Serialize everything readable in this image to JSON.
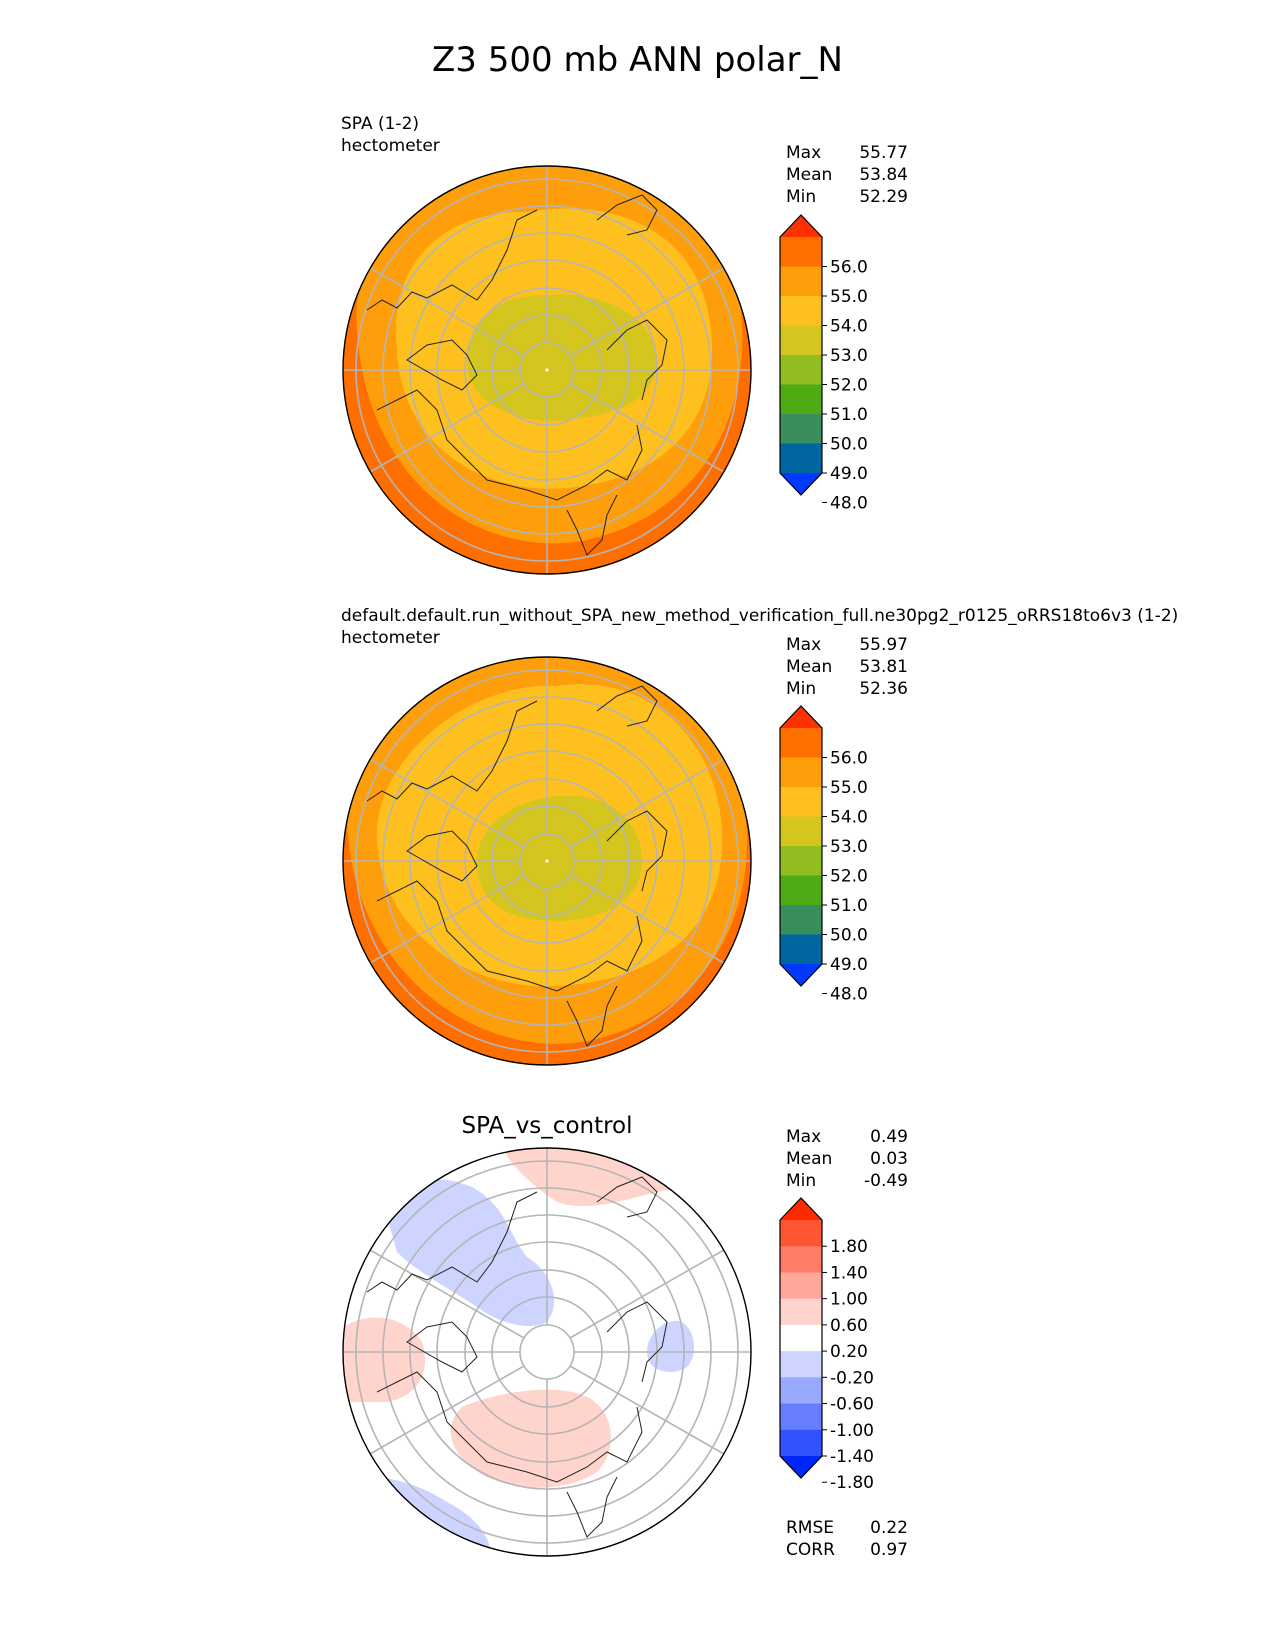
{
  "figure": {
    "title": "Z3 500 mb ANN polar_N"
  },
  "panels": [
    {
      "title_line1": "SPA (1-2)",
      "title_line2": "hectometer",
      "stats": [
        {
          "label": "Max",
          "value": "55.77"
        },
        {
          "label": "Mean",
          "value": "53.84"
        },
        {
          "label": "Min",
          "value": "52.29"
        }
      ],
      "colorbar": {
        "ticks": [
          "56.0",
          "55.0",
          "54.0",
          "53.0",
          "52.0",
          "51.0",
          "50.0",
          "49.0",
          "48.0"
        ],
        "colors": [
          "#fe3100",
          "#ff6f00",
          "#ff9e0b",
          "#fec01f",
          "#d5c61f",
          "#92bd20",
          "#4fab14",
          "#3a8e5e",
          "#0066a0",
          "#0039ff"
        ]
      }
    },
    {
      "title_line1": "default.default.run_without_SPA_new_method_verification_full.ne30pg2_r0125_oRRS18to6v3 (1-2)",
      "title_line2": "hectometer",
      "stats": [
        {
          "label": "Max",
          "value": "55.97"
        },
        {
          "label": "Mean",
          "value": "53.81"
        },
        {
          "label": "Min",
          "value": "52.36"
        }
      ],
      "colorbar": {
        "ticks": [
          "56.0",
          "55.0",
          "54.0",
          "53.0",
          "52.0",
          "51.0",
          "50.0",
          "49.0",
          "48.0"
        ],
        "colors": [
          "#fe3100",
          "#ff6f00",
          "#ff9e0b",
          "#fec01f",
          "#d5c61f",
          "#92bd20",
          "#4fab14",
          "#3a8e5e",
          "#0066a0",
          "#0039ff"
        ]
      }
    },
    {
      "title_center": "SPA_vs_control",
      "stats": [
        {
          "label": "Max",
          "value": "0.49"
        },
        {
          "label": "Mean",
          "value": "0.03"
        },
        {
          "label": "Min",
          "value": "-0.49"
        }
      ],
      "colorbar": {
        "ticks": [
          "1.80",
          "1.40",
          "1.00",
          "0.60",
          "0.20",
          "-0.20",
          "-0.60",
          "-1.00",
          "-1.40",
          "-1.80"
        ],
        "colors": [
          "#ff2a00",
          "#ff5533",
          "#ff7d66",
          "#ffa899",
          "#ffd4cc",
          "#ffffff",
          "#ccd4ff",
          "#99a9ff",
          "#667dff",
          "#3352ff",
          "#0026ff"
        ]
      },
      "metrics": [
        {
          "label": "RMSE",
          "value": "0.22"
        },
        {
          "label": "CORR",
          "value": "0.97"
        }
      ]
    }
  ]
}
